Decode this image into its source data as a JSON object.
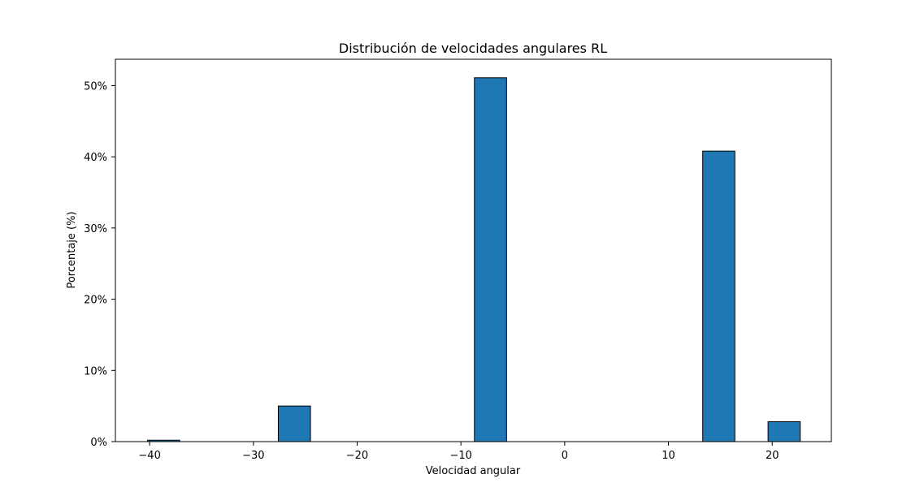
{
  "chart_data": {
    "type": "bar",
    "title": "Distribución de velocidades angulares RL",
    "xlabel": "Velocidad angular",
    "ylabel": "Porcentaje (%)",
    "xlim": [
      -43.3,
      25.7
    ],
    "ylim": [
      0,
      53.7
    ],
    "grid": false,
    "x_ticks": [
      {
        "value": -40,
        "label": "−40"
      },
      {
        "value": -30,
        "label": "−30"
      },
      {
        "value": -20,
        "label": "−20"
      },
      {
        "value": -10,
        "label": "−10"
      },
      {
        "value": 0,
        "label": "0"
      },
      {
        "value": 10,
        "label": "10"
      },
      {
        "value": 20,
        "label": "20"
      }
    ],
    "y_ticks": [
      {
        "value": 0,
        "label": "0%"
      },
      {
        "value": 10,
        "label": "10%"
      },
      {
        "value": 20,
        "label": "20%"
      },
      {
        "value": 30,
        "label": "30%"
      },
      {
        "value": 40,
        "label": "40%"
      },
      {
        "value": 50,
        "label": "50%"
      }
    ],
    "bars": [
      {
        "x0": -40.2,
        "x1": -37.1,
        "value": 0.2
      },
      {
        "x0": -27.6,
        "x1": -24.5,
        "value": 5.0
      },
      {
        "x0": -8.7,
        "x1": -5.6,
        "value": 51.1
      },
      {
        "x0": 13.3,
        "x1": 16.4,
        "value": 40.8
      },
      {
        "x0": 19.6,
        "x1": 22.7,
        "value": 2.8
      }
    ],
    "bar_color": "#1f77b4",
    "edge_color": "#000000"
  }
}
